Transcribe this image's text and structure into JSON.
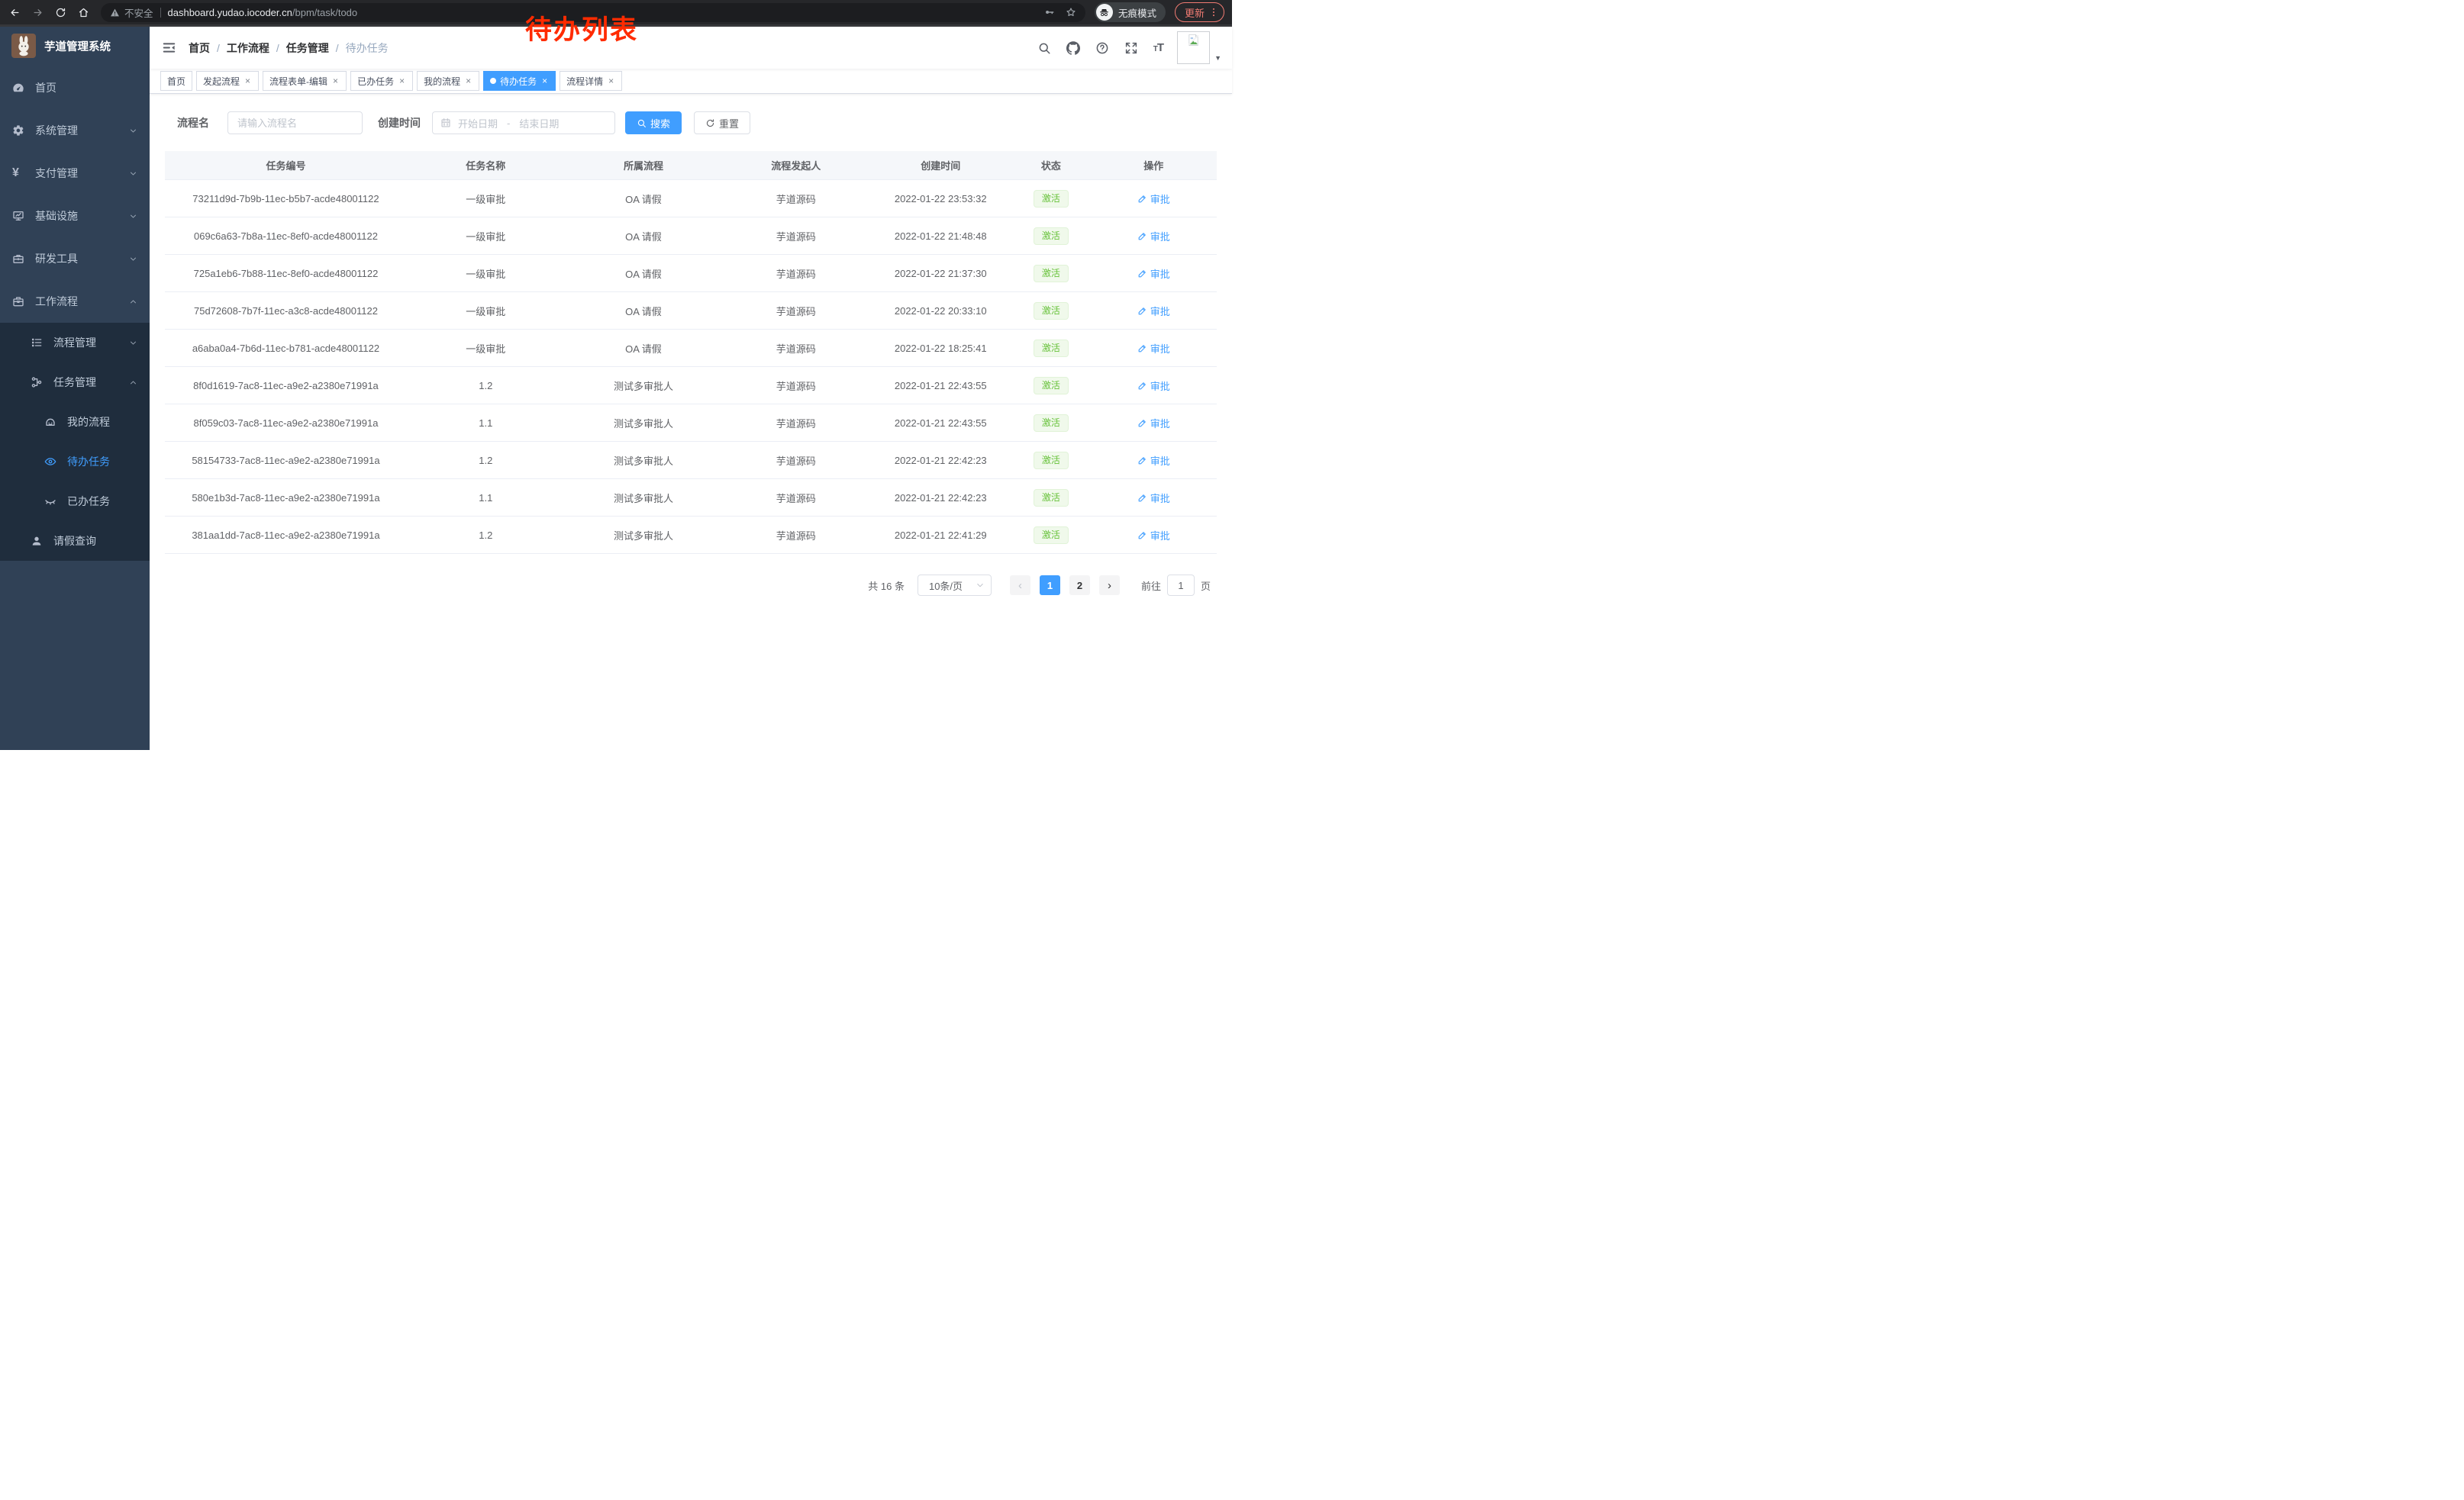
{
  "browser": {
    "security_label": "不安全",
    "url_domain": "dashboard.yudao.iocoder.cn",
    "url_path": "/bpm/task/todo",
    "incognito_label": "无痕模式",
    "update_button": "更新"
  },
  "annotation": {
    "text": "待办列表"
  },
  "sidebar": {
    "title": "芋道管理系统",
    "items": [
      {
        "key": "home",
        "label": "首页",
        "icon": "dashboard-icon",
        "level": 0
      },
      {
        "key": "system",
        "label": "系统管理",
        "icon": "gear-icon",
        "level": 0,
        "chevron": "down"
      },
      {
        "key": "payment",
        "label": "支付管理",
        "icon": "yen-icon",
        "level": 0,
        "chevron": "down"
      },
      {
        "key": "infrastructure",
        "label": "基础设施",
        "icon": "monitor-icon",
        "level": 0,
        "chevron": "down"
      },
      {
        "key": "dev-tools",
        "label": "研发工具",
        "icon": "toolbox-icon",
        "level": 0,
        "chevron": "down"
      },
      {
        "key": "workflow",
        "label": "工作流程",
        "icon": "briefcase-icon",
        "level": 0,
        "chevron": "up"
      },
      {
        "key": "process-mgmt",
        "label": "流程管理",
        "icon": "process-list-icon",
        "level": 1,
        "submenu": true,
        "chevron": "down"
      },
      {
        "key": "task-mgmt",
        "label": "任务管理",
        "icon": "task-tree-icon",
        "level": 1,
        "submenu": true,
        "chevron": "up"
      },
      {
        "key": "my-process",
        "label": "我的流程",
        "icon": "robot-icon",
        "level": 2,
        "submenu": true
      },
      {
        "key": "todo-tasks",
        "label": "待办任务",
        "icon": "eye-icon",
        "level": 2,
        "submenu": true,
        "active": true
      },
      {
        "key": "done-tasks",
        "label": "已办任务",
        "icon": "eye-closed-icon",
        "level": 2,
        "submenu": true
      },
      {
        "key": "leave-query",
        "label": "请假查询",
        "icon": "user-icon",
        "level": 1,
        "submenu": true
      }
    ]
  },
  "breadcrumb": [
    "首页",
    "工作流程",
    "任务管理",
    "待办任务"
  ],
  "breadcrumb_separator": "/",
  "tabs": [
    {
      "label": "首页",
      "closable": false,
      "active": false
    },
    {
      "label": "发起流程",
      "closable": true,
      "active": false
    },
    {
      "label": "流程表单-编辑",
      "closable": true,
      "active": false
    },
    {
      "label": "已办任务",
      "closable": true,
      "active": false
    },
    {
      "label": "我的流程",
      "closable": true,
      "active": false
    },
    {
      "label": "待办任务",
      "closable": true,
      "active": true
    },
    {
      "label": "流程详情",
      "closable": true,
      "active": false
    }
  ],
  "tab_close_glyph": "×",
  "filter": {
    "name_label": "流程名",
    "name_placeholder": "请输入流程名",
    "time_label": "创建时间",
    "start_placeholder": "开始日期",
    "range_separator": "-",
    "end_placeholder": "结束日期",
    "search_label": "搜索",
    "reset_label": "重置"
  },
  "table": {
    "headers": [
      "任务编号",
      "任务名称",
      "所属流程",
      "流程发起人",
      "创建时间",
      "状态",
      "操作"
    ],
    "rows": [
      {
        "id": "73211d9d-7b9b-11ec-b5b7-acde48001122",
        "name": "一级审批",
        "process": "OA 请假",
        "starter": "芋道源码",
        "created": "2022-01-22 23:53:32",
        "status": "激活",
        "action": "审批"
      },
      {
        "id": "069c6a63-7b8a-11ec-8ef0-acde48001122",
        "name": "一级审批",
        "process": "OA 请假",
        "starter": "芋道源码",
        "created": "2022-01-22 21:48:48",
        "status": "激活",
        "action": "审批"
      },
      {
        "id": "725a1eb6-7b88-11ec-8ef0-acde48001122",
        "name": "一级审批",
        "process": "OA 请假",
        "starter": "芋道源码",
        "created": "2022-01-22 21:37:30",
        "status": "激活",
        "action": "审批"
      },
      {
        "id": "75d72608-7b7f-11ec-a3c8-acde48001122",
        "name": "一级审批",
        "process": "OA 请假",
        "starter": "芋道源码",
        "created": "2022-01-22 20:33:10",
        "status": "激活",
        "action": "审批"
      },
      {
        "id": "a6aba0a4-7b6d-11ec-b781-acde48001122",
        "name": "一级审批",
        "process": "OA 请假",
        "starter": "芋道源码",
        "created": "2022-01-22 18:25:41",
        "status": "激活",
        "action": "审批"
      },
      {
        "id": "8f0d1619-7ac8-11ec-a9e2-a2380e71991a",
        "name": "1.2",
        "process": "测试多审批人",
        "starter": "芋道源码",
        "created": "2022-01-21 22:43:55",
        "status": "激活",
        "action": "审批"
      },
      {
        "id": "8f059c03-7ac8-11ec-a9e2-a2380e71991a",
        "name": "1.1",
        "process": "测试多审批人",
        "starter": "芋道源码",
        "created": "2022-01-21 22:43:55",
        "status": "激活",
        "action": "审批"
      },
      {
        "id": "58154733-7ac8-11ec-a9e2-a2380e71991a",
        "name": "1.2",
        "process": "测试多审批人",
        "starter": "芋道源码",
        "created": "2022-01-21 22:42:23",
        "status": "激活",
        "action": "审批"
      },
      {
        "id": "580e1b3d-7ac8-11ec-a9e2-a2380e71991a",
        "name": "1.1",
        "process": "测试多审批人",
        "starter": "芋道源码",
        "created": "2022-01-21 22:42:23",
        "status": "激活",
        "action": "审批"
      },
      {
        "id": "381aa1dd-7ac8-11ec-a9e2-a2380e71991a",
        "name": "1.2",
        "process": "测试多审批人",
        "starter": "芋道源码",
        "created": "2022-01-21 22:41:29",
        "status": "激活",
        "action": "审批"
      }
    ]
  },
  "pagination": {
    "total_label": "共 16 条",
    "page_size_label": "10条/页",
    "prev_glyph": "‹",
    "next_glyph": "›",
    "pages": [
      "1",
      "2"
    ],
    "active_page": "1",
    "goto_label": "前往",
    "goto_value": "1",
    "goto_suffix": "页"
  },
  "colors": {
    "accent": "#409eff",
    "success-text": "#67c23a",
    "success-bg": "#f0f9eb",
    "success-border": "#e1f3d8",
    "sidebar-bg": "#304156",
    "submenu-bg": "#1f2d3d",
    "sidebar-text": "#bfcbd9",
    "annotation-red": "#ff2b00",
    "update-red": "#f07b72"
  }
}
